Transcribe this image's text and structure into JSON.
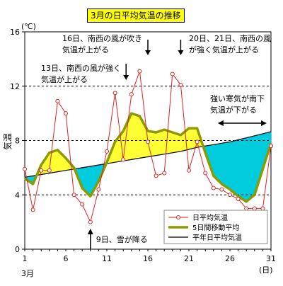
{
  "chart_data": {
    "type": "line",
    "title": "3月の日平均気温の推移",
    "ylabel": "気温",
    "yunit": "(℃)",
    "xunit": "(日)",
    "month_label": "3月",
    "xlim": [
      1,
      31
    ],
    "ylim": [
      0,
      16
    ],
    "x_ticks": [
      1,
      6,
      11,
      16,
      21,
      26,
      31
    ],
    "y_ticks": [
      0,
      4,
      8,
      12,
      16
    ],
    "gridlines_y": [
      4,
      8,
      12
    ],
    "x": [
      1,
      2,
      3,
      4,
      5,
      6,
      7,
      8,
      9,
      10,
      11,
      12,
      13,
      14,
      15,
      16,
      17,
      18,
      19,
      20,
      21,
      22,
      23,
      24,
      25,
      26,
      27,
      28,
      29,
      30,
      31
    ],
    "series": [
      {
        "name": "日平均気温",
        "color": "#dd2222",
        "values": [
          5.9,
          2.9,
          5.8,
          5.8,
          10.9,
          10.0,
          4.0,
          3.3,
          2.0,
          4.4,
          7.2,
          11.5,
          6.6,
          11.4,
          13.1,
          7.9,
          5.4,
          5.6,
          12.9,
          12.1,
          5.8,
          7.9,
          5.6,
          4.5,
          4.4,
          4.0,
          3.7,
          3.0,
          3.0,
          3.0,
          7.6
        ]
      },
      {
        "name": "5日間移動平均",
        "color": "#8a9a00",
        "values": [
          5.2,
          4.8,
          6.2,
          7.1,
          7.3,
          6.7,
          6.0,
          4.5,
          3.9,
          5.0,
          6.4,
          7.9,
          8.7,
          10.0,
          9.8,
          8.7,
          8.6,
          8.8,
          8.6,
          8.4,
          8.9,
          8.9,
          7.1,
          5.4,
          4.8,
          4.4,
          3.9,
          3.5,
          4.0,
          5.9,
          7.8
        ]
      },
      {
        "name": "平年日平均気温",
        "color": "#000000",
        "values": [
          5.3,
          5.4,
          5.5,
          5.6,
          5.7,
          5.8,
          5.9,
          6.0,
          6.1,
          6.2,
          6.3,
          6.4,
          6.5,
          6.6,
          6.7,
          6.8,
          6.9,
          7.0,
          7.1,
          7.2,
          7.35,
          7.5,
          7.6,
          7.7,
          7.8,
          7.9,
          8.05,
          8.2,
          8.35,
          8.5,
          8.65
        ]
      }
    ],
    "fill_colors": {
      "above_normal": "#ffff33",
      "below_normal": "#00ccdd"
    },
    "annotations": [
      {
        "lines": [
          "9日、雪が降る"
        ],
        "x": 9
      },
      {
        "lines": [
          "13日、南西の風が強く",
          "気温が上がる"
        ],
        "x": 13
      },
      {
        "lines": [
          "16日、南西の風が吹き",
          "気温が上がる"
        ],
        "x": 16
      },
      {
        "lines": [
          "20日、21日、南西の風",
          "が強く気温が上がる"
        ],
        "x": 20
      },
      {
        "lines": [
          "強い寒気が南下",
          "気温が下がる"
        ],
        "x_range": [
          24,
          31
        ]
      }
    ]
  }
}
